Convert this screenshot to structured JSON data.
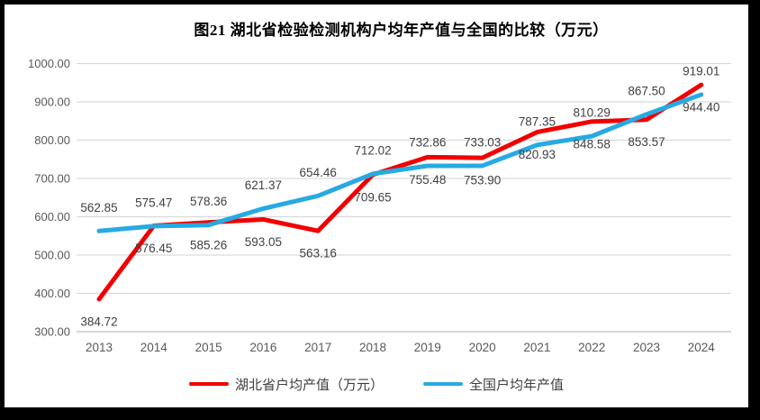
{
  "chart_data": {
    "type": "line",
    "title": "图21 湖北省检验检测机构户均年产值与全国的比较（万元）",
    "categories": [
      "2013",
      "2014",
      "2015",
      "2016",
      "2017",
      "2018",
      "2019",
      "2020",
      "2021",
      "2022",
      "2023",
      "2024"
    ],
    "series": [
      {
        "name": "湖北省户均产值（万元）",
        "color": "#f20000",
        "label_position": "below",
        "values": [
          384.72,
          576.45,
          585.26,
          593.05,
          563.16,
          709.65,
          755.48,
          753.9,
          820.93,
          848.58,
          853.57,
          944.4
        ]
      },
      {
        "name": "全国户均年产值",
        "color": "#27aae1",
        "label_position": "above",
        "values": [
          562.85,
          575.47,
          578.36,
          621.37,
          654.46,
          712.02,
          732.86,
          733.03,
          787.35,
          810.29,
          867.5,
          919.01
        ]
      }
    ],
    "ylim": [
      300,
      1000
    ],
    "ytick_step": 100,
    "yticks": [
      "300.00",
      "400.00",
      "500.00",
      "600.00",
      "700.00",
      "800.00",
      "900.00",
      "1000.00"
    ],
    "value_decimals": 2,
    "grid": true,
    "legend_position": "bottom",
    "colors": {
      "gridline": "#d9d9d9",
      "axis_line": "#bfbfbf",
      "axis_text": "#595959",
      "label_text": "#404040",
      "frame": "#000000",
      "background": "#ffffff"
    }
  }
}
